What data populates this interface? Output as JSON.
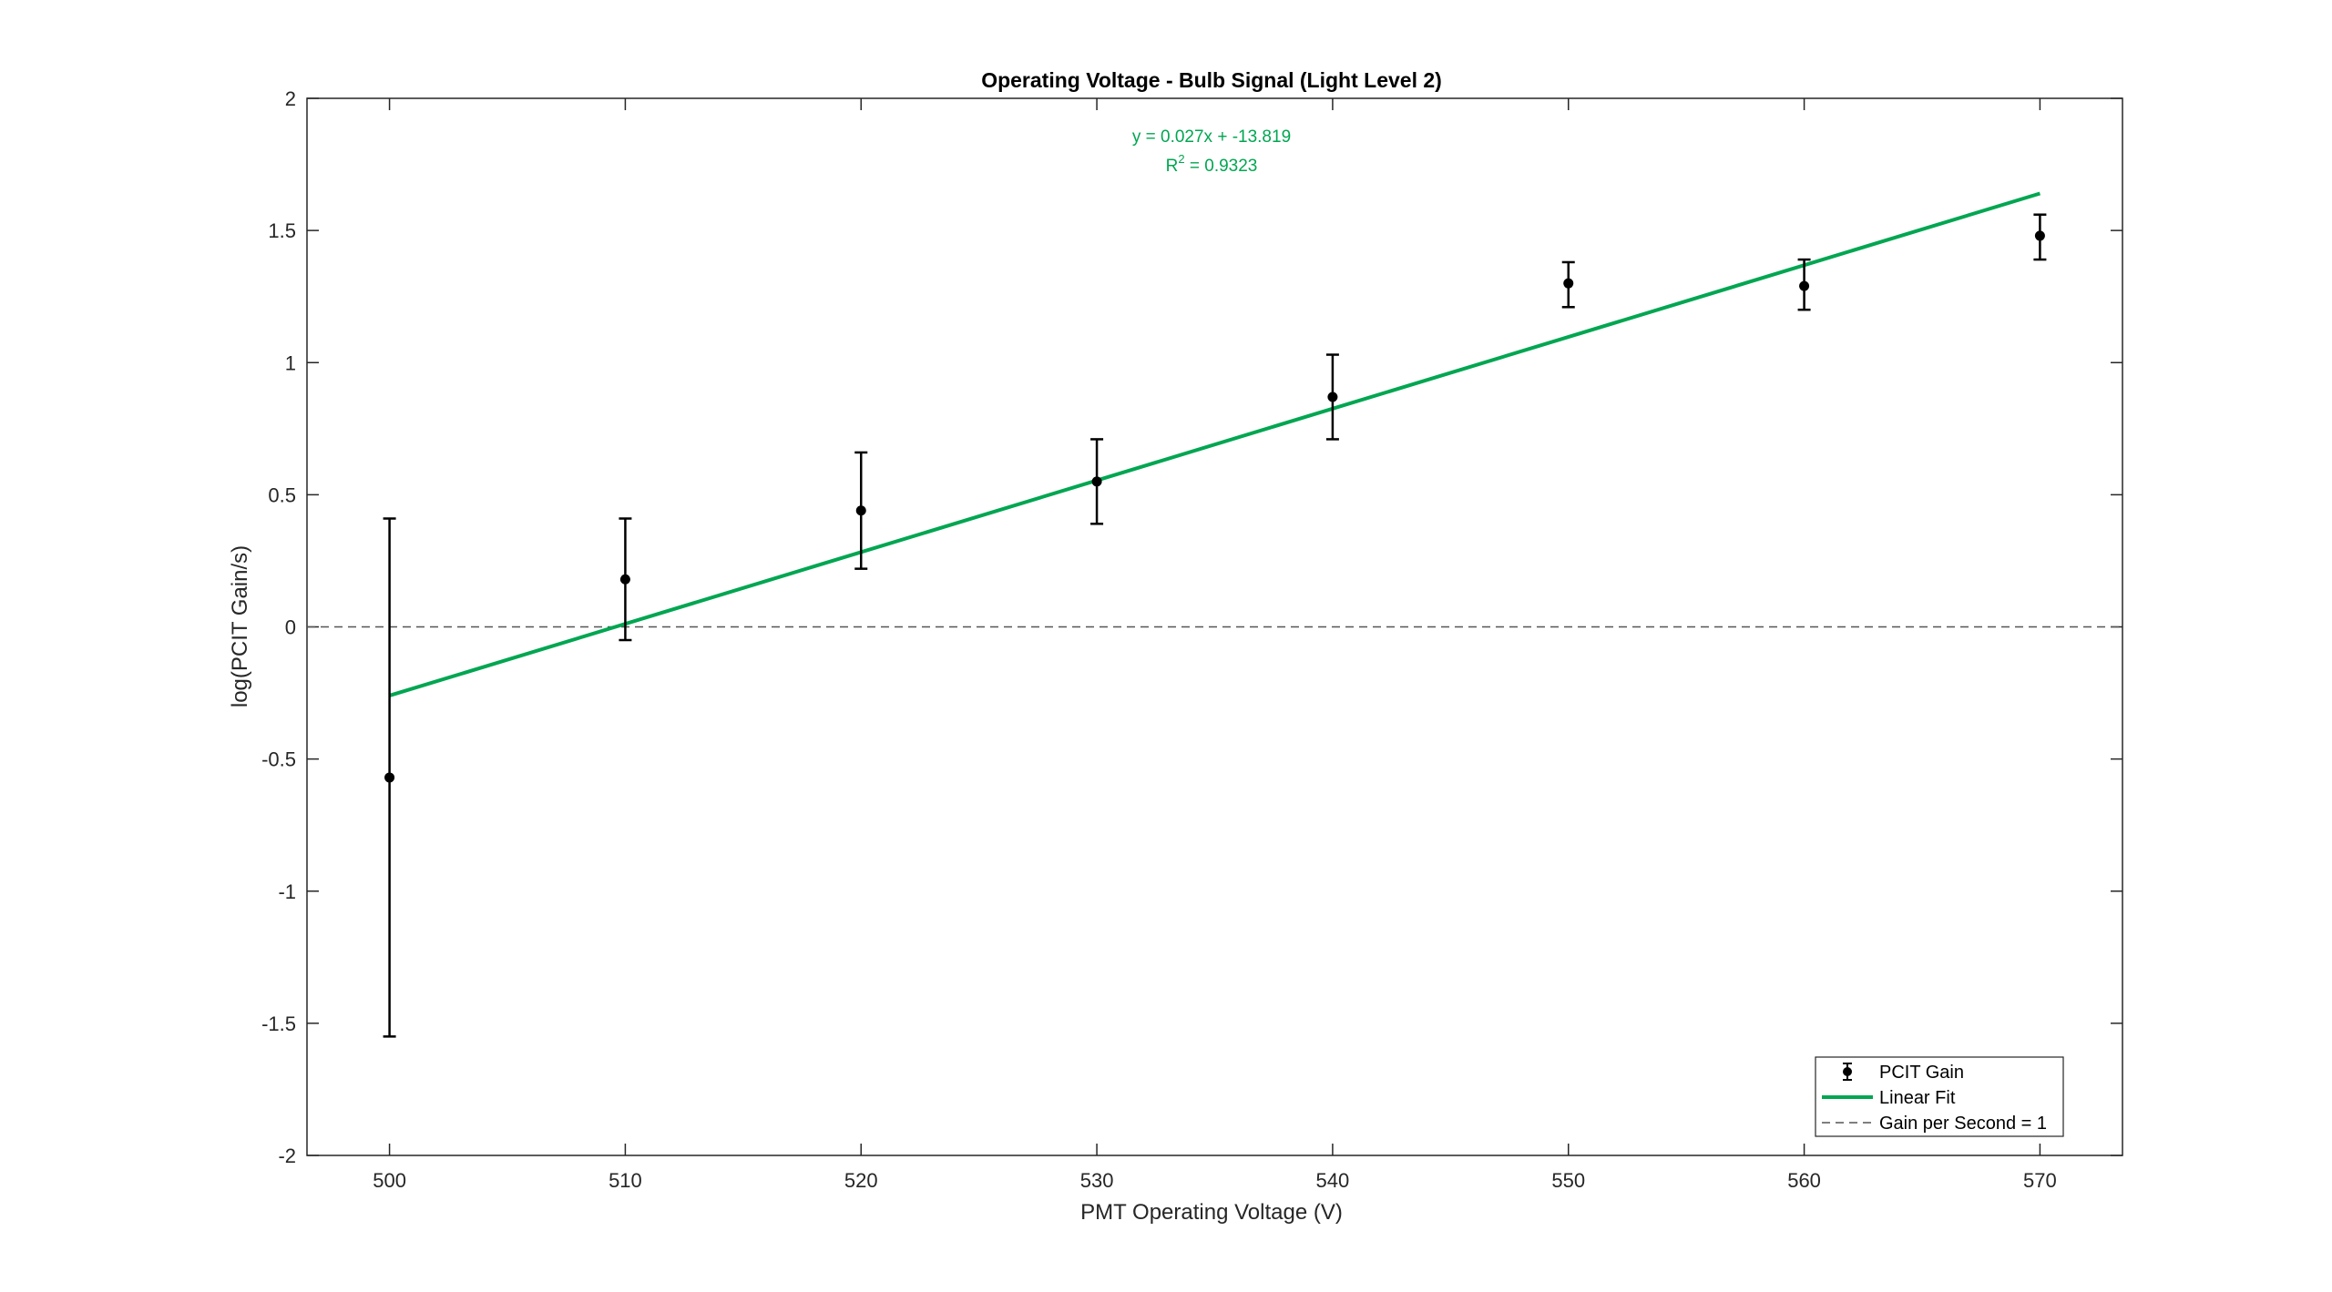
{
  "chart_data": {
    "type": "scatter",
    "title": "Operating Voltage - Bulb Signal (Light Level 2)",
    "xlabel": "PMT Operating Voltage (V)",
    "ylabel": "log(PCIT Gain/s)",
    "xlim": [
      496.5,
      573.5
    ],
    "ylim": [
      -2,
      2
    ],
    "xticks": [
      500,
      510,
      520,
      530,
      540,
      550,
      560,
      570
    ],
    "yticks": [
      -2,
      -1.5,
      -1,
      -0.5,
      0,
      0.5,
      1,
      1.5,
      2
    ],
    "xtick_labels": [
      "500",
      "510",
      "520",
      "530",
      "540",
      "550",
      "560",
      "570"
    ],
    "ytick_labels": [
      "-2",
      "-1.5",
      "-1",
      "-0.5",
      "0",
      "0.5",
      "1",
      "1.5",
      "2"
    ],
    "grid": false,
    "legend_position": "bottom-right",
    "series": [
      {
        "name": "PCIT Gain",
        "kind": "errorbar",
        "color": "#000000",
        "x": [
          500,
          510,
          520,
          530,
          540,
          550,
          560,
          570
        ],
        "y": [
          -0.57,
          0.18,
          0.44,
          0.55,
          0.87,
          1.3,
          1.29,
          1.48
        ],
        "y_low": [
          -1.55,
          -0.05,
          0.22,
          0.39,
          0.71,
          1.21,
          1.2,
          1.39
        ],
        "y_high": [
          0.41,
          0.41,
          0.66,
          0.71,
          1.03,
          1.38,
          1.39,
          1.56
        ]
      },
      {
        "name": "Linear Fit",
        "kind": "line",
        "color": "#00a651",
        "x": [
          500,
          570
        ],
        "y": [
          -0.26,
          1.64
        ]
      },
      {
        "name": "Gain per Second = 1",
        "kind": "hline",
        "style": "dashed",
        "color": "#555555",
        "y": 0
      }
    ],
    "annotation": {
      "color": "#00a651",
      "equation": "y = 0.027x + -13.819",
      "r2_prefix": "R",
      "r2_exponent": "2",
      "r2_suffix": " = 0.9323"
    }
  }
}
